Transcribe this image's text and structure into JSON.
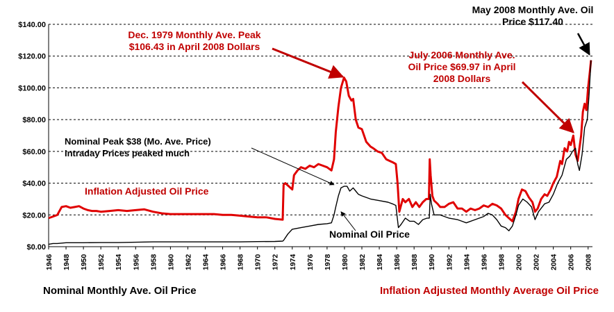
{
  "colors": {
    "inflation": "#e00000",
    "nominal": "#000000",
    "annotation_red": "#c00000",
    "grid": "#000000"
  },
  "footer": {
    "nominal_label": "Nominal Monthly Ave. Oil Price",
    "inflation_label": "Inflation Adjusted Monthly Average Oil Price"
  },
  "chart_data": {
    "type": "line",
    "title": "",
    "xlabel": "",
    "ylabel": "",
    "xlim": [
      1946,
      2008.5
    ],
    "ylim": [
      0,
      140
    ],
    "grid": "horizontal dashed",
    "y_ticks": [
      "$0.00",
      "$20.00",
      "$40.00",
      "$60.00",
      "$80.00",
      "$100.00",
      "$120.00",
      "$140.00"
    ],
    "x_ticks": [
      "1946",
      "1948",
      "1950",
      "1952",
      "1954",
      "1956",
      "1958",
      "1960",
      "1962",
      "1964",
      "1966",
      "1968",
      "1970",
      "1972",
      "1974",
      "1976",
      "1978",
      "1980",
      "1982",
      "1984",
      "1986",
      "1988",
      "1990",
      "1992",
      "1994",
      "1996",
      "1998",
      "2000",
      "2002",
      "2004",
      "2006",
      "2008"
    ],
    "series": [
      {
        "name": "Inflation Adjusted Oil Price",
        "color": "#e00000",
        "x": [
          1946.0,
          1946.5,
          1947.0,
          1947.5,
          1948.0,
          1948.5,
          1949.0,
          1949.5,
          1950.0,
          1950.5,
          1951.0,
          1951.5,
          1952.0,
          1953.0,
          1954.0,
          1955.0,
          1956.0,
          1957.0,
          1958.0,
          1959.0,
          1960.0,
          1961.0,
          1962.0,
          1963.0,
          1964.0,
          1965.0,
          1966.0,
          1967.0,
          1968.0,
          1969.0,
          1970.0,
          1971.0,
          1972.0,
          1972.9,
          1973.0,
          1973.2,
          1973.6,
          1974.0,
          1974.2,
          1974.6,
          1975.0,
          1975.5,
          1976.0,
          1976.5,
          1977.0,
          1977.5,
          1978.0,
          1978.5,
          1978.8,
          1979.0,
          1979.3,
          1979.6,
          1979.95,
          1980.2,
          1980.5,
          1980.8,
          1981.0,
          1981.3,
          1981.6,
          1982.0,
          1982.5,
          1983.0,
          1983.3,
          1983.8,
          1984.3,
          1984.8,
          1985.2,
          1985.6,
          1985.9,
          1986.1,
          1986.3,
          1986.7,
          1987.0,
          1987.4,
          1987.8,
          1988.2,
          1988.6,
          1989.0,
          1989.4,
          1989.7,
          1989.8,
          1989.9,
          1990.1,
          1990.3,
          1990.7,
          1991.0,
          1991.5,
          1992.0,
          1992.5,
          1993.0,
          1993.5,
          1994.0,
          1994.5,
          1995.0,
          1995.5,
          1996.0,
          1996.5,
          1997.0,
          1997.5,
          1998.0,
          1998.5,
          1998.9,
          1999.3,
          1999.7,
          2000.0,
          2000.4,
          2000.8,
          2001.2,
          2001.6,
          2001.9,
          2002.2,
          2002.6,
          2003.0,
          2003.3,
          2003.7,
          2004.0,
          2004.4,
          2004.8,
          2005.0,
          2005.3,
          2005.6,
          2005.8,
          2006.0,
          2006.3,
          2006.55,
          2006.8,
          2007.0,
          2007.2,
          2007.4,
          2007.6,
          2007.8,
          2008.0,
          2008.2,
          2008.33
        ],
        "values": [
          18,
          19,
          20,
          25,
          25.5,
          24.5,
          25,
          25.5,
          24,
          23,
          22.5,
          22.5,
          22,
          22.5,
          23,
          22.5,
          23,
          23.5,
          22,
          21,
          20.5,
          20.5,
          20.5,
          20.5,
          20.5,
          20.5,
          20,
          20,
          19.5,
          19,
          18.5,
          18.5,
          17.5,
          17,
          39,
          40,
          38,
          36,
          45,
          48,
          50,
          49,
          51,
          50,
          52,
          51,
          50,
          48,
          55,
          72,
          88,
          100,
          106.43,
          104,
          95,
          92,
          93,
          80,
          75,
          74,
          66,
          63,
          62,
          60,
          59,
          55,
          54,
          53,
          52,
          40,
          22,
          30,
          28,
          30,
          25,
          28,
          25,
          28,
          30,
          30,
          55,
          45,
          32,
          29,
          27,
          25,
          25,
          27,
          28,
          24,
          24,
          22,
          24,
          23,
          24,
          26,
          25,
          27,
          26,
          24,
          20,
          18,
          16,
          22,
          30,
          36,
          35,
          31,
          28,
          22,
          24,
          30,
          33,
          32,
          36,
          40,
          44,
          54,
          52,
          62,
          60,
          66,
          64,
          69.97,
          58,
          54,
          62,
          70,
          85,
          90,
          86,
          100,
          110,
          117.4
        ]
      },
      {
        "name": "Nominal Oil Price",
        "color": "#000000",
        "x": [
          1946.0,
          1946.5,
          1947.0,
          1948.0,
          1950.0,
          1952.0,
          1954.0,
          1956.0,
          1958.0,
          1960.0,
          1962.0,
          1964.0,
          1966.0,
          1968.0,
          1970.0,
          1972.0,
          1972.9,
          1973.0,
          1973.5,
          1974.0,
          1975.0,
          1976.0,
          1977.0,
          1978.0,
          1978.5,
          1978.8,
          1979.0,
          1979.3,
          1979.6,
          1979.95,
          1980.3,
          1980.6,
          1981.0,
          1981.3,
          1981.6,
          1982.0,
          1983.0,
          1984.0,
          1985.0,
          1985.5,
          1985.9,
          1986.2,
          1986.5,
          1987.0,
          1987.5,
          1988.0,
          1988.5,
          1989.0,
          1989.5,
          1989.75,
          1989.85,
          1990.0,
          1990.3,
          1991.0,
          1991.5,
          1992.0,
          1993.0,
          1993.5,
          1994.0,
          1995.0,
          1996.0,
          1996.5,
          1997.0,
          1997.5,
          1998.0,
          1998.5,
          1998.9,
          1999.3,
          1999.7,
          2000.0,
          2000.5,
          2001.0,
          2001.5,
          2001.9,
          2002.3,
          2003.0,
          2003.5,
          2004.0,
          2004.5,
          2005.0,
          2005.5,
          2005.9,
          2006.2,
          2006.55,
          2006.8,
          2007.0,
          2007.3,
          2007.6,
          2007.9,
          2008.1,
          2008.33
        ],
        "values": [
          1.5,
          2,
          2,
          2.5,
          2.5,
          2.6,
          2.6,
          2.8,
          3,
          3,
          3,
          3,
          3,
          3,
          3.2,
          3.3,
          3.5,
          4,
          8,
          11,
          12,
          13,
          14,
          14.5,
          15,
          20,
          25,
          32,
          37,
          38,
          38,
          35,
          37,
          35,
          33,
          32,
          30,
          29,
          28,
          27,
          26,
          12,
          14,
          18,
          16,
          16,
          14,
          17,
          18,
          18,
          33,
          27,
          20,
          20,
          19,
          18,
          17,
          16,
          15,
          17,
          19,
          21,
          20,
          17,
          13,
          12,
          10,
          13,
          20,
          26,
          30,
          28,
          25,
          17,
          22,
          27,
          28,
          33,
          40,
          45,
          55,
          57,
          60,
          62,
          52,
          48,
          58,
          75,
          80,
          95,
          117.4
        ]
      }
    ],
    "annotations": [
      {
        "text": [
          "Dec. 1979 Monthly Ave. Peak",
          "$106.43 in April 2008 Dollars"
        ],
        "color": "#c00000"
      },
      {
        "text": [
          "July 2006 Monthly Ave.",
          "Oil Price $69.97 in April",
          "2008 Dollars"
        ],
        "color": "#c00000"
      },
      {
        "text": [
          "May 2008 Monthly Ave. Oil",
          "Price $117.40"
        ],
        "color": "#000000"
      },
      {
        "text": [
          "Nominal Peak $38 (Mo. Ave. Price)",
          "Intraday Prices peaked much"
        ],
        "color": "#000000"
      },
      {
        "text": [
          "Inflation Adjusted Oil Price"
        ],
        "color": "#c00000"
      },
      {
        "text": [
          "Nominal Oil Price"
        ],
        "color": "#000000"
      }
    ]
  }
}
